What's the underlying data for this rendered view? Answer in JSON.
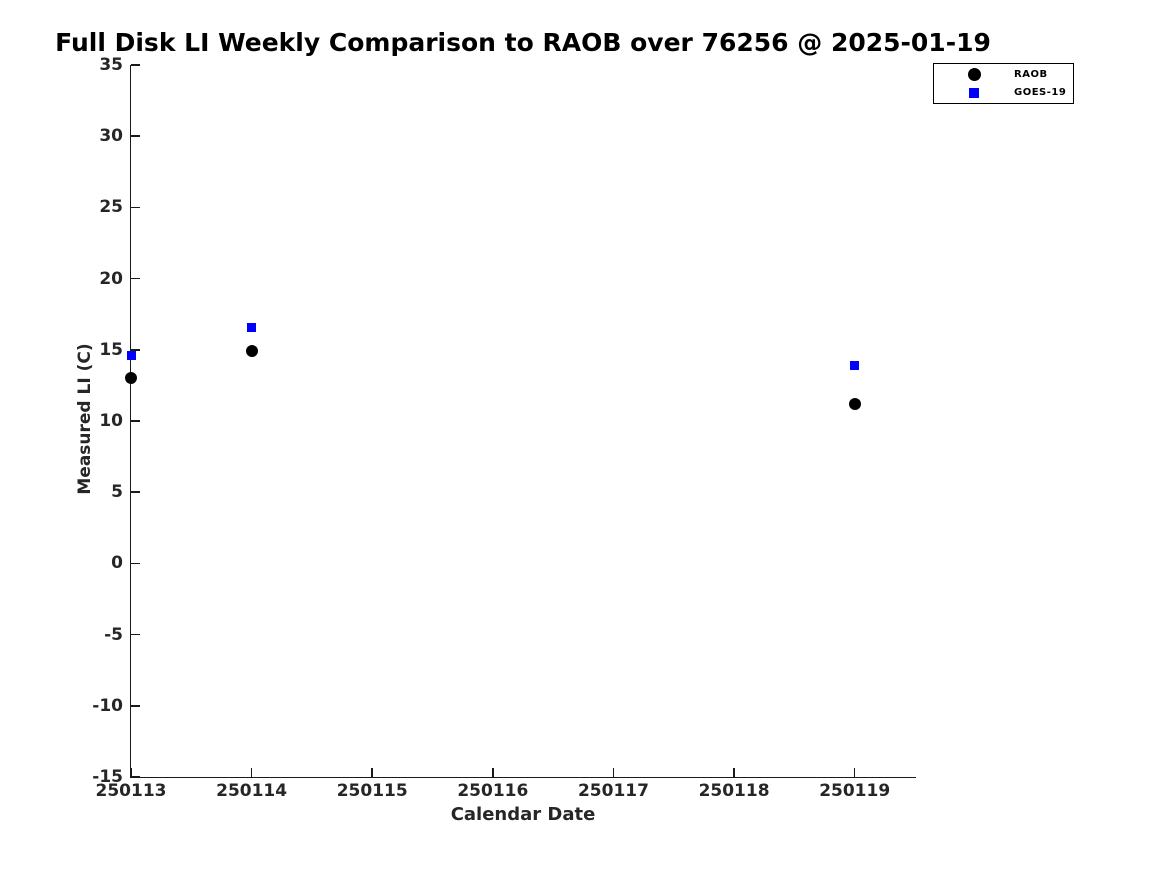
{
  "chart_data": {
    "type": "scatter",
    "title": "Full Disk LI Weekly Comparison to RAOB over 76256 @ 2025-01-19",
    "xlabel": "Calendar Date",
    "ylabel": "Measured LI (C)",
    "x_tick_labels": [
      "250113",
      "250114",
      "250115",
      "250116",
      "250117",
      "250118",
      "250119"
    ],
    "y_ticks": [
      35,
      30,
      25,
      20,
      15,
      10,
      5,
      0,
      -5,
      -10,
      -15
    ],
    "ylim": [
      -15,
      35
    ],
    "xlim_day_index": [
      0,
      6.5
    ],
    "grid": false,
    "legend": {
      "position": "outside-top-right",
      "border_color": "#000000"
    },
    "series": [
      {
        "name": "RAOB",
        "marker": "circle",
        "color": "#000000",
        "x": [
          "250113",
          "250114",
          "250119"
        ],
        "x_day_index": [
          0,
          1,
          6
        ],
        "values": [
          13.0,
          14.9,
          11.2
        ]
      },
      {
        "name": "GOES-19",
        "marker": "square",
        "color": "#0000ff",
        "x": [
          "250113",
          "250114",
          "250119"
        ],
        "x_day_index": [
          0,
          1,
          6
        ],
        "values": [
          14.6,
          16.6,
          13.9
        ]
      }
    ]
  }
}
